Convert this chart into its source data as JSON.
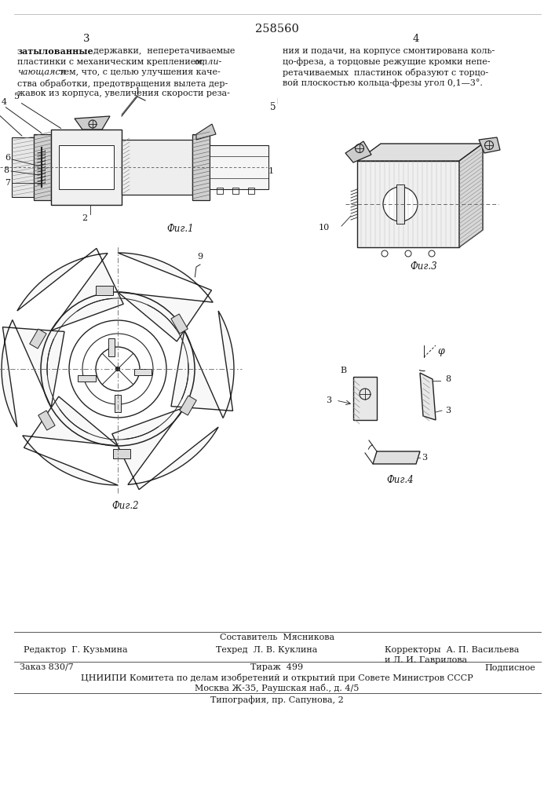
{
  "title": "258560",
  "page_left": "3",
  "page_right": "4",
  "bg_color": "#ffffff",
  "text_color": "#1a1a1a",
  "lc": "#222222",
  "text_left_lines": [
    "затылованные   державки,   неперетачиваемые",
    "пластинки с механическим креплением, отли-",
    "чающаяся тем, что, с целью улучшения каче-",
    "ства обработки, предотвращения вылета дер-",
    "жавок из корпуса, увеличения скорости реза-"
  ],
  "text_right_lines": [
    "ния и подачи, на корпусе смонтирована коль-",
    "цо-фреза, а торцовые режущие кромки непе-",
    "ретачиваемых  пластинок образуют с торцо-",
    "вой плоскостью кольца-фрезы угол 0,1—3°."
  ],
  "number_5": "5",
  "footer_composer": "Составитель  Мясникова",
  "footer_editor": "Редактор  Г. Кузьмина",
  "footer_techred": "Техред  Л. В. Куклина",
  "footer_correctors": "Корректоры  А. П. Васильева",
  "footer_correctors2": "и Л. И. Гаврилова",
  "footer_order": "Заказ 830/7",
  "footer_tirazh": "Тираж  499",
  "footer_podpisnoe": "Подписное",
  "footer_cniipи": "ЦНИИПИ Комитета по делам изобретений и открытий при Совете Министров СССР",
  "footer_moscow": "Москва Ж-35, Раушская наб., д. 4/5",
  "footer_tipografia": "Типография, пр. Сапунова, 2"
}
